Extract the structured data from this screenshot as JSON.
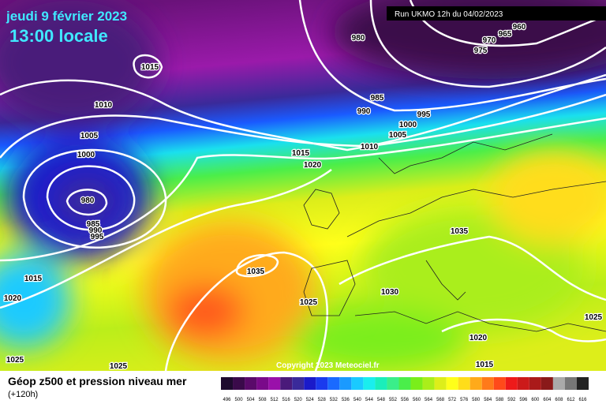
{
  "header": {
    "date": "jeudi 9 février 2023",
    "time": "13:00 locale",
    "run": "Run UKMO 12h du 04/02/2023"
  },
  "isobar_labels": [
    "1015",
    "1010",
    "1005",
    "1000",
    "980",
    "985",
    "990",
    "995",
    "1015",
    "1020",
    "1025",
    "1025",
    "1035",
    "1025",
    "1030",
    "1035",
    "1020",
    "1015",
    "1025",
    "1015",
    "1020",
    "1010",
    "1005",
    "1000",
    "995",
    "990",
    "985",
    "980",
    "975",
    "970",
    "965",
    "960"
  ],
  "copyright": "Copyright 2023 Meteociel.fr",
  "legend": {
    "title": "Géop z500 et pression niveau mer",
    "subtitle": "(+120h)",
    "items": [
      {
        "label": "496",
        "color": "#1e0a2e"
      },
      {
        "label": "500",
        "color": "#3a0a4a"
      },
      {
        "label": "504",
        "color": "#5a0a6a"
      },
      {
        "label": "508",
        "color": "#7a0a8a"
      },
      {
        "label": "512",
        "color": "#9a10aa"
      },
      {
        "label": "516",
        "color": "#4a1a7a"
      },
      {
        "label": "520",
        "color": "#3a2a9a"
      },
      {
        "label": "524",
        "color": "#1a1aca"
      },
      {
        "label": "528",
        "color": "#1a3aee"
      },
      {
        "label": "532",
        "color": "#1a6aff"
      },
      {
        "label": "536",
        "color": "#1a9aff"
      },
      {
        "label": "540",
        "color": "#1acaff"
      },
      {
        "label": "544",
        "color": "#1aeeee"
      },
      {
        "label": "548",
        "color": "#1aeebb"
      },
      {
        "label": "552",
        "color": "#3aee8a"
      },
      {
        "label": "556",
        "color": "#4aee4a"
      },
      {
        "label": "560",
        "color": "#7aee1a"
      },
      {
        "label": "564",
        "color": "#aaee1a"
      },
      {
        "label": "568",
        "color": "#ddee1a"
      },
      {
        "label": "572",
        "color": "#ffff1a"
      },
      {
        "label": "576",
        "color": "#ffdd1a"
      },
      {
        "label": "580",
        "color": "#ffaa1a"
      },
      {
        "label": "584",
        "color": "#ff7a1a"
      },
      {
        "label": "588",
        "color": "#ff4a1a"
      },
      {
        "label": "592",
        "color": "#ee1a1a"
      },
      {
        "label": "596",
        "color": "#cc1a1a"
      },
      {
        "label": "600",
        "color": "#aa1a1a"
      },
      {
        "label": "604",
        "color": "#8a1a1a"
      },
      {
        "label": "608",
        "color": "#aaaaaa"
      },
      {
        "label": "612",
        "color": "#777777"
      },
      {
        "label": "616",
        "color": "#222222"
      }
    ]
  }
}
